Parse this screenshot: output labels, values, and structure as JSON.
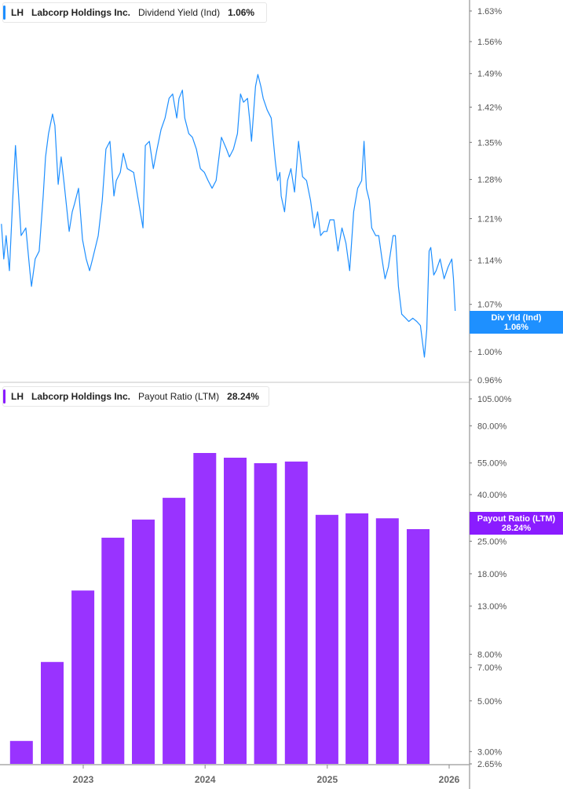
{
  "colors": {
    "yield_line": "#1e8fff",
    "yield_tag": "#1e90ff",
    "payout_bar": "#9933ff",
    "payout_tag": "#8a1cff",
    "axis": "#aaaaaa"
  },
  "top_panel": {
    "legend": {
      "ticker": "LH",
      "company": "Labcorp Holdings Inc.",
      "metric": "Dividend Yield (Ind)",
      "value": "1.06%"
    },
    "tag": {
      "label": "Div Yld (Ind)",
      "value": "1.06%"
    }
  },
  "bottom_panel": {
    "legend": {
      "ticker": "LH",
      "company": "Labcorp Holdings Inc.",
      "metric": "Payout Ratio (LTM)",
      "value": "28.24%"
    },
    "tag": {
      "label": "Payout Ratio (LTM)",
      "value": "28.24%"
    }
  },
  "chart_data": [
    {
      "type": "line",
      "series": [
        {
          "name": "Dividend Yield (Ind)",
          "unit": "%",
          "points": [
            [
              "2022-05-01",
              1.201
            ],
            [
              "2022-05-08",
              1.142
            ],
            [
              "2022-05-15",
              1.181
            ],
            [
              "2022-05-25",
              1.123
            ],
            [
              "2022-06-03",
              1.236
            ],
            [
              "2022-06-12",
              1.344
            ],
            [
              "2022-06-20",
              1.264
            ],
            [
              "2022-06-29",
              1.181
            ],
            [
              "2022-07-13",
              1.194
            ],
            [
              "2022-07-25",
              1.123
            ],
            [
              "2022-07-30",
              1.098
            ],
            [
              "2022-08-10",
              1.142
            ],
            [
              "2022-08-22",
              1.155
            ],
            [
              "2022-09-03",
              1.25
            ],
            [
              "2022-09-10",
              1.322
            ],
            [
              "2022-09-19",
              1.367
            ],
            [
              "2022-10-01",
              1.406
            ],
            [
              "2022-10-08",
              1.383
            ],
            [
              "2022-10-18",
              1.271
            ],
            [
              "2022-10-27",
              1.322
            ],
            [
              "2022-11-05",
              1.271
            ],
            [
              "2022-11-20",
              1.188
            ],
            [
              "2022-11-29",
              1.222
            ],
            [
              "2022-12-06",
              1.236
            ],
            [
              "2022-12-18",
              1.264
            ],
            [
              "2022-12-30",
              1.174
            ],
            [
              "2023-01-10",
              1.142
            ],
            [
              "2023-01-20",
              1.123
            ],
            [
              "2023-01-29",
              1.142
            ],
            [
              "2023-02-15",
              1.181
            ],
            [
              "2023-02-27",
              1.242
            ],
            [
              "2023-03-10",
              1.337
            ],
            [
              "2023-03-22",
              1.352
            ],
            [
              "2023-04-03",
              1.25
            ],
            [
              "2023-04-10",
              1.278
            ],
            [
              "2023-04-22",
              1.293
            ],
            [
              "2023-05-01",
              1.329
            ],
            [
              "2023-05-13",
              1.3
            ],
            [
              "2023-06-01",
              1.293
            ],
            [
              "2023-06-15",
              1.242
            ],
            [
              "2023-06-29",
              1.194
            ],
            [
              "2023-07-06",
              1.344
            ],
            [
              "2023-07-18",
              1.352
            ],
            [
              "2023-07-30",
              1.3
            ],
            [
              "2023-08-10",
              1.337
            ],
            [
              "2023-08-22",
              1.375
            ],
            [
              "2023-09-03",
              1.398
            ],
            [
              "2023-09-15",
              1.438
            ],
            [
              "2023-09-26",
              1.447
            ],
            [
              "2023-10-08",
              1.398
            ],
            [
              "2023-10-15",
              1.438
            ],
            [
              "2023-10-25",
              1.455
            ],
            [
              "2023-11-01",
              1.398
            ],
            [
              "2023-11-13",
              1.367
            ],
            [
              "2023-11-24",
              1.36
            ],
            [
              "2023-12-06",
              1.337
            ],
            [
              "2023-12-18",
              1.3
            ],
            [
              "2023-12-30",
              1.293
            ],
            [
              "2024-01-10",
              1.278
            ],
            [
              "2024-01-22",
              1.264
            ],
            [
              "2024-02-03",
              1.278
            ],
            [
              "2024-02-19",
              1.36
            ],
            [
              "2024-03-05",
              1.337
            ],
            [
              "2024-03-14",
              1.322
            ],
            [
              "2024-03-26",
              1.337
            ],
            [
              "2024-04-07",
              1.367
            ],
            [
              "2024-04-16",
              1.447
            ],
            [
              "2024-04-25",
              1.43
            ],
            [
              "2024-05-07",
              1.438
            ],
            [
              "2024-05-14",
              1.391
            ],
            [
              "2024-05-19",
              1.352
            ],
            [
              "2024-05-31",
              1.463
            ],
            [
              "2024-06-07",
              1.488
            ],
            [
              "2024-06-16",
              1.463
            ],
            [
              "2024-06-23",
              1.438
            ],
            [
              "2024-07-05",
              1.414
            ],
            [
              "2024-07-17",
              1.398
            ],
            [
              "2024-07-29",
              1.315
            ],
            [
              "2024-08-05",
              1.278
            ],
            [
              "2024-08-12",
              1.293
            ],
            [
              "2024-08-16",
              1.25
            ],
            [
              "2024-08-26",
              1.222
            ],
            [
              "2024-09-04",
              1.278
            ],
            [
              "2024-09-14",
              1.3
            ],
            [
              "2024-09-25",
              1.257
            ],
            [
              "2024-10-07",
              1.352
            ],
            [
              "2024-10-19",
              1.285
            ],
            [
              "2024-10-31",
              1.278
            ],
            [
              "2024-11-12",
              1.242
            ],
            [
              "2024-11-23",
              1.194
            ],
            [
              "2024-12-03",
              1.222
            ],
            [
              "2024-12-12",
              1.181
            ],
            [
              "2024-12-22",
              1.188
            ],
            [
              "2024-12-31",
              1.188
            ],
            [
              "2025-01-09",
              1.208
            ],
            [
              "2025-01-21",
              1.208
            ],
            [
              "2025-02-02",
              1.155
            ],
            [
              "2025-02-14",
              1.194
            ],
            [
              "2025-02-26",
              1.168
            ],
            [
              "2025-03-09",
              1.123
            ],
            [
              "2025-03-21",
              1.222
            ],
            [
              "2025-04-02",
              1.264
            ],
            [
              "2025-04-14",
              1.278
            ],
            [
              "2025-04-21",
              1.352
            ],
            [
              "2025-04-28",
              1.264
            ],
            [
              "2025-05-07",
              1.242
            ],
            [
              "2025-05-14",
              1.194
            ],
            [
              "2025-05-26",
              1.181
            ],
            [
              "2025-06-04",
              1.181
            ],
            [
              "2025-06-14",
              1.142
            ],
            [
              "2025-06-23",
              1.11
            ],
            [
              "2025-07-03",
              1.129
            ],
            [
              "2025-07-17",
              1.181
            ],
            [
              "2025-07-24",
              1.181
            ],
            [
              "2025-08-02",
              1.098
            ],
            [
              "2025-08-12",
              1.055
            ],
            [
              "2025-08-24",
              1.049
            ],
            [
              "2025-09-02",
              1.044
            ],
            [
              "2025-09-14",
              1.049
            ],
            [
              "2025-09-26",
              1.044
            ],
            [
              "2025-10-07",
              1.038
            ],
            [
              "2025-10-19",
              0.992
            ],
            [
              "2025-10-26",
              1.032
            ],
            [
              "2025-11-02",
              1.155
            ],
            [
              "2025-11-07",
              1.161
            ],
            [
              "2025-11-16",
              1.116
            ],
            [
              "2025-11-23",
              1.123
            ],
            [
              "2025-12-05",
              1.142
            ],
            [
              "2025-12-17",
              1.11
            ],
            [
              "2025-12-29",
              1.129
            ],
            [
              "2026-01-09",
              1.142
            ],
            [
              "2026-01-14",
              1.11
            ],
            [
              "2026-01-19",
              1.06
            ]
          ]
        }
      ],
      "y_scale": "log",
      "ylim": [
        0.96,
        1.63
      ],
      "y_ticks": [
        "0.96%",
        "1.00%",
        "1.07%",
        "1.14%",
        "1.21%",
        "1.28%",
        "1.35%",
        "1.42%",
        "1.49%",
        "1.56%",
        "1.63%"
      ],
      "xlim": [
        "2022-04-28",
        "2026-02-10"
      ],
      "grid": false,
      "legend_position": "top-left"
    },
    {
      "type": "bar",
      "series": [
        {
          "name": "Payout Ratio (LTM)",
          "unit": "%",
          "points": [
            [
              "2022-06-30",
              3.34
            ],
            [
              "2022-09-30",
              7.4
            ],
            [
              "2022-12-31",
              15.2
            ],
            [
              "2023-03-31",
              25.9
            ],
            [
              "2023-06-30",
              31.1
            ],
            [
              "2023-09-30",
              38.7
            ],
            [
              "2023-12-31",
              60.8
            ],
            [
              "2024-03-31",
              58.0
            ],
            [
              "2024-06-30",
              54.9
            ],
            [
              "2024-09-30",
              55.8
            ],
            [
              "2024-12-31",
              32.6
            ],
            [
              "2025-03-31",
              33.1
            ],
            [
              "2025-06-30",
              31.5
            ],
            [
              "2025-09-30",
              28.24
            ]
          ]
        }
      ],
      "y_scale": "log",
      "ylim": [
        2.65,
        105
      ],
      "y_ticks": [
        "2.65%",
        "3.00%",
        "5.00%",
        "7.00%",
        "8.00%",
        "13.00%",
        "18.00%",
        "25.00%",
        "40.00%",
        "55.00%",
        "80.00%",
        "105.00%"
      ],
      "x_ticks": [
        "2023",
        "2024",
        "2025",
        "2026"
      ],
      "xlim": [
        "2022-04-28",
        "2026-02-10"
      ],
      "grid": false,
      "legend_position": "top-left"
    }
  ]
}
